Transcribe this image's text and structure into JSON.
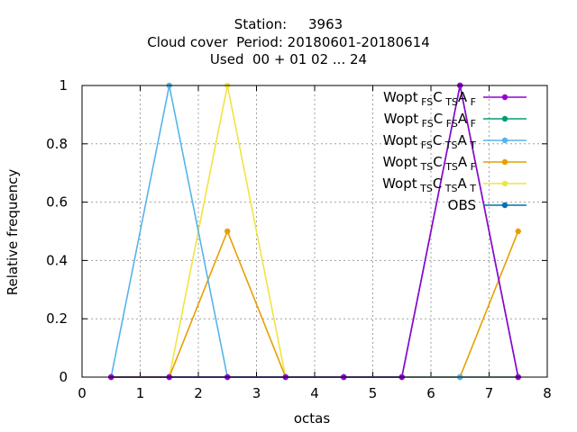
{
  "chart_data": {
    "type": "line",
    "title": [
      "Station:     3963",
      "Cloud cover  Period: 20180601-20180614",
      "Used  00 + 01 02 ... 24"
    ],
    "xlabel": "octas",
    "ylabel": "Relative frequency",
    "xlim": [
      0,
      8
    ],
    "ylim": [
      0,
      1
    ],
    "xticks": [
      "0",
      "1",
      "2",
      "3",
      "4",
      "5",
      "6",
      "7",
      "8"
    ],
    "yticks": [
      "0",
      "0.2",
      "0.4",
      "0.6",
      "0.8",
      "1"
    ],
    "grid": true,
    "legend_position": "top-right",
    "x": [
      0.5,
      1.5,
      2.5,
      3.5,
      4.5,
      5.5,
      6.5,
      7.5
    ],
    "series": [
      {
        "name_base": "Wopt",
        "sub1": "FS",
        "mid1": "C",
        "sub2": "TS",
        "mid2": "A",
        "sub3": "F",
        "color": "#9400d3",
        "values": [
          0,
          0,
          0,
          0,
          0,
          0,
          1,
          0
        ]
      },
      {
        "name_base": "Wopt",
        "sub1": "FS",
        "mid1": "C",
        "sub2": "FS",
        "mid2": "A",
        "sub3": "F",
        "color": "#009e73",
        "values": [
          0,
          0,
          0,
          0,
          0,
          0,
          1,
          0
        ]
      },
      {
        "name_base": "Wopt",
        "sub1": "FS",
        "mid1": "C",
        "sub2": "TS",
        "mid2": "A",
        "sub3": "T",
        "color": "#56b4e9",
        "values": [
          0,
          1,
          0,
          0,
          0,
          0,
          0,
          0
        ]
      },
      {
        "name_base": "Wopt",
        "sub1": "TS",
        "mid1": "C",
        "sub2": "TS",
        "mid2": "A",
        "sub3": "F",
        "color": "#e69f00",
        "values": [
          0,
          0,
          0.5,
          0,
          0,
          0,
          0,
          0.5
        ]
      },
      {
        "name_base": "Wopt",
        "sub1": "TS",
        "mid1": "C",
        "sub2": "TS",
        "mid2": "A",
        "sub3": "T",
        "color": "#f0e442",
        "values": [
          0,
          0,
          1,
          0,
          0,
          0,
          0,
          0
        ]
      },
      {
        "name_base": "OBS",
        "sub1": "",
        "mid1": "",
        "sub2": "",
        "mid2": "",
        "sub3": "",
        "color": "#0072b2",
        "values": [
          0,
          0,
          0,
          0,
          0,
          0,
          0,
          0
        ]
      }
    ]
  }
}
